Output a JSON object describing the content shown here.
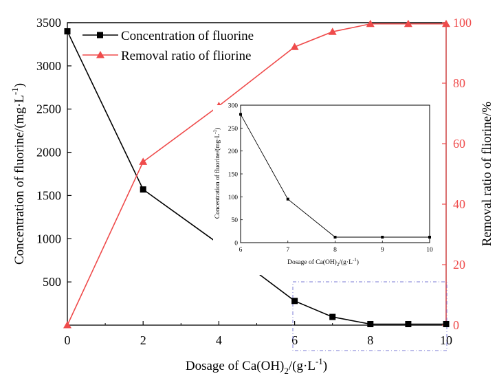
{
  "chart_data": {
    "type": "line",
    "x_label": "Dosage of Ca(OH)",
    "x_label_sub": "2",
    "x_label_tail": "/(g·L",
    "x_label_sup": "-1",
    "x_label_end": ")",
    "y_left_label": "Concentration of fluorine/(mg·L",
    "y_left_label_sup": "-1",
    "y_left_label_end": ")",
    "y_right_label": "Removal ratio of fliorine/%",
    "x_ticks": [
      "0",
      "2",
      "4",
      "6",
      "8",
      "10"
    ],
    "y_left_ticks": [
      "500",
      "1000",
      "1500",
      "2000",
      "2500",
      "3000",
      "3500"
    ],
    "y_right_ticks": [
      "0",
      "20",
      "40",
      "60",
      "80",
      "100"
    ],
    "x_range": [
      0,
      10
    ],
    "y_left_range": [
      0,
      3500
    ],
    "y_right_range": [
      0,
      100
    ],
    "legend_position": "top-left",
    "series": [
      {
        "name": "Concentration of fluorine",
        "axis": "left",
        "color": "#000000",
        "marker": "square",
        "x": [
          0,
          2,
          4,
          6,
          7,
          8,
          9,
          10
        ],
        "y": [
          3400,
          1570,
          940,
          280,
          95,
          12,
          12,
          12
        ]
      },
      {
        "name": "Removal ratio of fliorine",
        "axis": "right",
        "color": "#ef4b4b",
        "marker": "triangle",
        "x": [
          0,
          2,
          4,
          6,
          7,
          8,
          9,
          10
        ],
        "y": [
          0,
          54,
          72.5,
          92,
          97,
          99.6,
          99.6,
          99.6
        ]
      }
    ],
    "inset": {
      "x_label": "Dosage of Ca(OH)",
      "x_label_sub": "2",
      "x_label_tail": "/(g·L",
      "x_label_sup": "-1",
      "x_label_end": ")",
      "y_label": "Concentration of fluorine/(mg·L",
      "y_label_sup": "-1",
      "y_label_end": ")",
      "x_ticks": [
        "6",
        "7",
        "8",
        "9",
        "10"
      ],
      "y_ticks": [
        "0",
        "50",
        "100",
        "150",
        "200",
        "250",
        "300"
      ],
      "x_range": [
        6,
        10
      ],
      "y_range": [
        0,
        300
      ],
      "x": [
        6,
        7,
        8,
        9,
        10
      ],
      "y": [
        280,
        95,
        12,
        12,
        12
      ]
    }
  }
}
